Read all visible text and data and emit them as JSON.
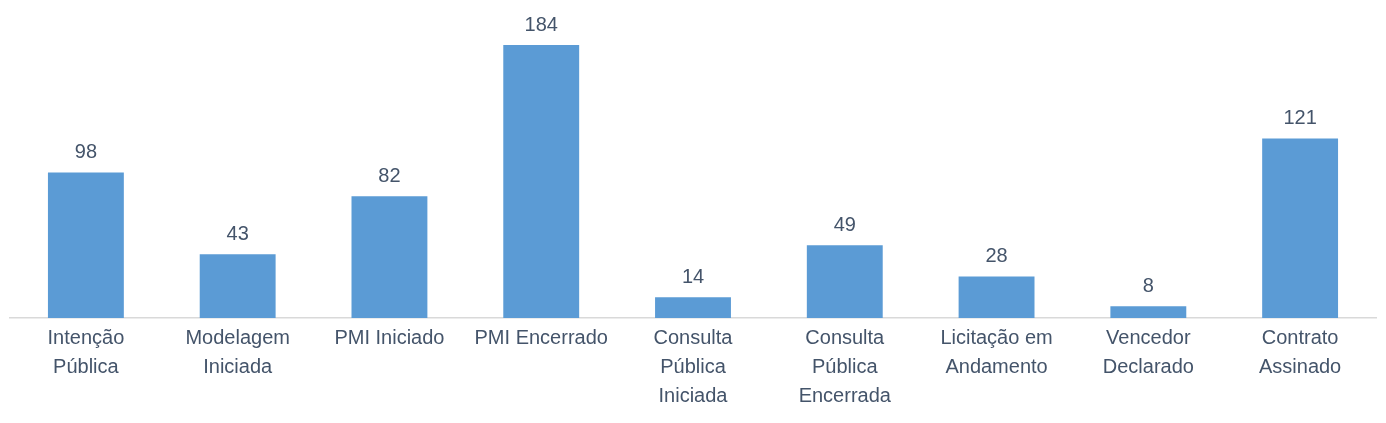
{
  "chart_data": {
    "type": "bar",
    "categories": [
      "Intenção Pública",
      "Modelagem Iniciada",
      "PMI Iniciado",
      "PMI Encerrado",
      "Consulta Pública Iniciada",
      "Consulta Pública Encerrada",
      "Licitação em Andamento",
      "Vencedor Declarado",
      "Contrato Assinado"
    ],
    "values": [
      98,
      43,
      82,
      184,
      14,
      49,
      28,
      8,
      121
    ],
    "color": "#5b9bd5",
    "data_labels": true
  }
}
